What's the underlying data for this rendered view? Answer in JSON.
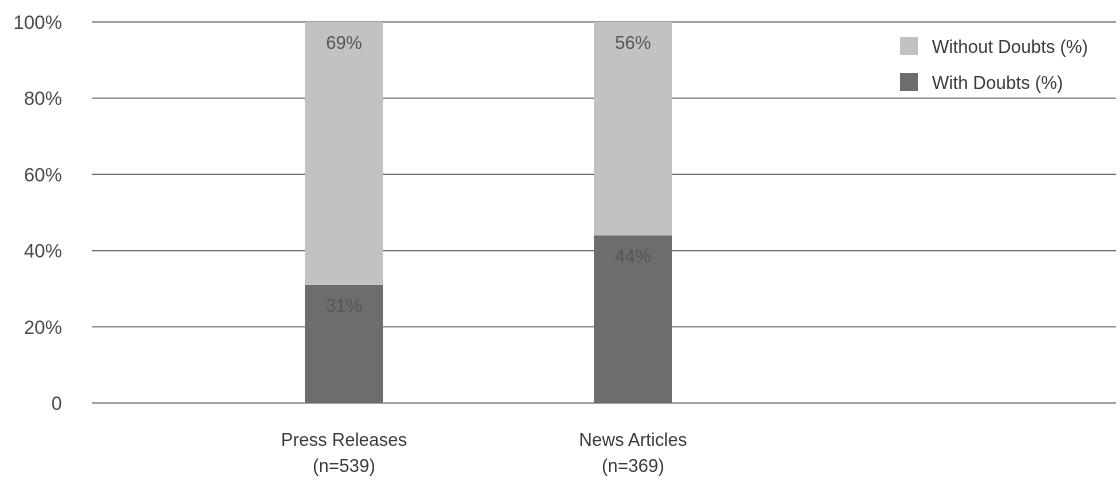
{
  "chart_data": {
    "type": "bar",
    "stacked": true,
    "categories": [
      [
        "Press Releases",
        "(n=539)"
      ],
      [
        "News Articles",
        "(n=369)"
      ]
    ],
    "series": [
      {
        "name": "With Doubts (%)",
        "values": [
          31,
          44
        ],
        "labels": [
          "31%",
          "44%"
        ],
        "color": "#6d6d6d"
      },
      {
        "name": "Without Doubts (%)",
        "values": [
          69,
          56
        ],
        "labels": [
          "69%",
          "56%"
        ],
        "color": "#c2c2c2"
      }
    ],
    "ylim": [
      0,
      100
    ],
    "yticks": [
      0,
      20,
      40,
      60,
      80,
      100
    ],
    "ytick_labels": [
      "0",
      "20%",
      "40%",
      "60%",
      "80%",
      "100%"
    ],
    "grid": true,
    "legend": {
      "position": "top-right",
      "entries": [
        "Without Doubts (%)",
        "With Doubts (%)"
      ]
    },
    "title": "",
    "xlabel": "",
    "ylabel": ""
  }
}
